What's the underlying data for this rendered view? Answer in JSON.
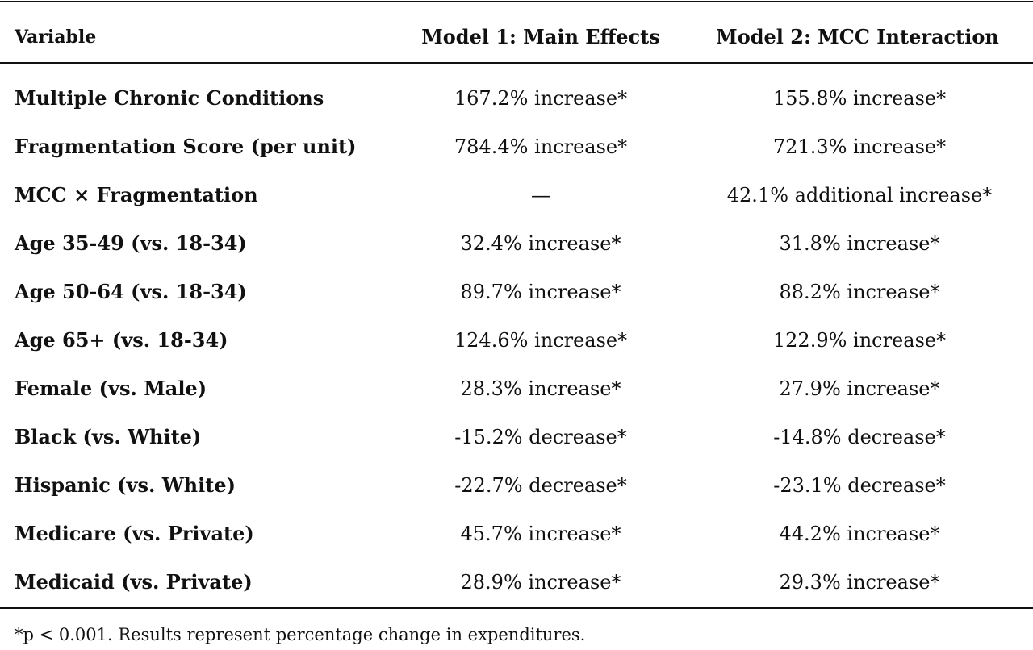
{
  "table": {
    "headers": {
      "variable": "Variable",
      "model1": "Model 1: Main Effects",
      "model2": "Model 2: MCC Interaction"
    },
    "rows": [
      {
        "variable": "Multiple Chronic Conditions",
        "model1": "167.2% increase*",
        "model2": "155.8% increase*"
      },
      {
        "variable": "Fragmentation Score (per unit)",
        "model1": "784.4% increase*",
        "model2": "721.3% increase*"
      },
      {
        "variable": "MCC × Fragmentation",
        "model1": "—",
        "model2": "42.1% additional increase*"
      },
      {
        "variable": "Age 35-49 (vs. 18-34)",
        "model1": "32.4% increase*",
        "model2": "31.8% increase*"
      },
      {
        "variable": "Age 50-64 (vs. 18-34)",
        "model1": "89.7% increase*",
        "model2": "88.2% increase*"
      },
      {
        "variable": "Age 65+ (vs. 18-34)",
        "model1": "124.6% increase*",
        "model2": "122.9% increase*"
      },
      {
        "variable": "Female (vs. Male)",
        "model1": "28.3% increase*",
        "model2": "27.9% increase*"
      },
      {
        "variable": "Black (vs. White)",
        "model1": "-15.2% decrease*",
        "model2": "-14.8% decrease*"
      },
      {
        "variable": "Hispanic (vs. White)",
        "model1": "-22.7% decrease*",
        "model2": "-23.1% decrease*"
      },
      {
        "variable": "Medicare (vs. Private)",
        "model1": "45.7% increase*",
        "model2": "44.2% increase*"
      },
      {
        "variable": "Medicaid (vs. Private)",
        "model1": "28.9% increase*",
        "model2": "29.3% increase*"
      }
    ],
    "footnote": "*p < 0.001. Results represent percentage change in expenditures."
  }
}
